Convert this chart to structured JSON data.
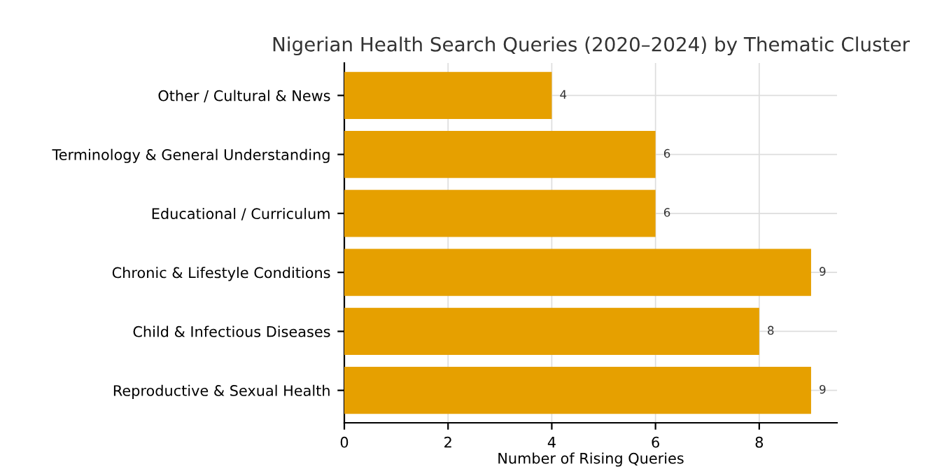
{
  "chart_data": {
    "type": "bar",
    "orientation": "horizontal",
    "title": "Nigerian Health Search Queries (2020–2024) by Thematic Cluster",
    "xlabel": "Number of Rising Queries",
    "categories": [
      "Other / Cultural & News",
      "Terminology & General Understanding",
      "Educational / Curriculum",
      "Chronic & Lifestyle Conditions",
      "Child & Infectious Diseases",
      "Reproductive & Sexual Health"
    ],
    "values": [
      4,
      6,
      6,
      9,
      8,
      9
    ],
    "color": "#e6a000",
    "data_labels": true,
    "xlim": [
      0,
      9.5
    ],
    "xticks": [
      0,
      2,
      4,
      6,
      8
    ],
    "grid": true
  }
}
